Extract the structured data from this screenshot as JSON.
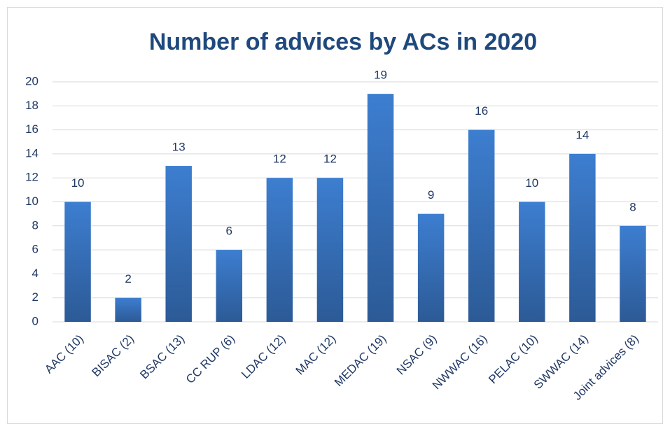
{
  "chart_data": {
    "type": "bar",
    "title": "Number of advices by ACs in 2020",
    "categories": [
      "AAC (10)",
      "BISAC (2)",
      "BSAC (13)",
      "CC RUP (6)",
      "LDAC (12)",
      "MAC (12)",
      "MEDAC (19)",
      "NSAC (9)",
      "NWWAC (16)",
      "PELAC (10)",
      "SWWAC (14)",
      "Joint advices (8)"
    ],
    "values": [
      10,
      2,
      13,
      6,
      12,
      12,
      19,
      9,
      16,
      10,
      14,
      8
    ],
    "color": "#3d7ed0",
    "ylim": [
      0,
      20
    ],
    "yticks": [
      0,
      2,
      4,
      6,
      8,
      10,
      12,
      14,
      16,
      18,
      20
    ],
    "grid": true
  }
}
